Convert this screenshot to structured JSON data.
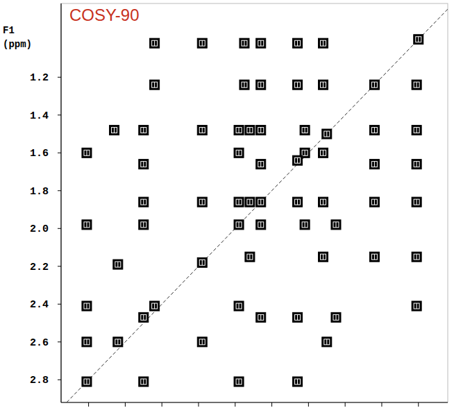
{
  "chart_data": {
    "type": "scatter",
    "title": "COSY-90",
    "y_label": "F1 (ppm)",
    "color": "#000000",
    "marker": "square",
    "tick_labels": "y",
    "grid": false,
    "xlim": [
      2.95,
      0.84
    ],
    "ylim": [
      0.81,
      2.92
    ],
    "xticks": [
      2.8,
      2.6,
      2.4,
      2.2,
      2.0,
      1.8,
      1.6,
      1.4,
      1.2,
      1.0
    ],
    "yticks": [
      1.2,
      1.4,
      1.6,
      1.8,
      {
        "value": 2,
        "label": "2.0"
      },
      2.2,
      2.4,
      2.6,
      2.8
    ],
    "x": [
      2.44,
      2.18,
      1.95,
      1.86,
      1.66,
      1.52,
      2.44,
      1.95,
      1.86,
      1.66,
      1.52,
      1.01,
      2.66,
      2.5,
      2.18,
      1.98,
      1.92,
      1.86,
      1.62,
      1.24,
      1.01,
      2.81,
      1.98,
      1.52,
      2.5,
      1.86,
      1.24,
      1.01,
      2.5,
      2.18,
      1.98,
      1.92,
      1.66,
      1.52,
      1.24,
      1.01,
      2.81,
      2.5,
      1.86,
      1.62,
      1.45,
      1.92,
      1.52,
      1.24,
      1.01,
      2.64,
      2.81,
      2.44,
      1.98,
      1.01,
      2.5,
      1.86,
      1.66,
      1.45,
      2.81,
      2.64,
      2.18,
      1.5,
      2.81,
      2.5,
      1.98,
      1.66,
      1.0,
      1.24,
      1.5,
      1.62,
      1.66,
      1.86,
      1.98,
      2.18
    ],
    "values": [
      1.02,
      1.02,
      1.02,
      1.02,
      1.02,
      1.02,
      1.24,
      1.24,
      1.24,
      1.24,
      1.24,
      1.24,
      1.48,
      1.48,
      1.48,
      1.48,
      1.48,
      1.48,
      1.48,
      1.48,
      1.48,
      1.6,
      1.6,
      1.6,
      1.66,
      1.66,
      1.66,
      1.66,
      1.86,
      1.86,
      1.86,
      1.86,
      1.86,
      1.86,
      1.86,
      1.86,
      1.98,
      1.98,
      1.98,
      1.98,
      1.98,
      2.15,
      2.15,
      2.15,
      2.15,
      2.19,
      2.41,
      2.41,
      2.41,
      2.41,
      2.47,
      2.47,
      2.47,
      2.47,
      2.6,
      2.6,
      2.6,
      2.6,
      2.81,
      2.81,
      2.81,
      2.81,
      1.0,
      1.24,
      1.5,
      1.6,
      1.64,
      1.86,
      1.98,
      2.18
    ]
  }
}
